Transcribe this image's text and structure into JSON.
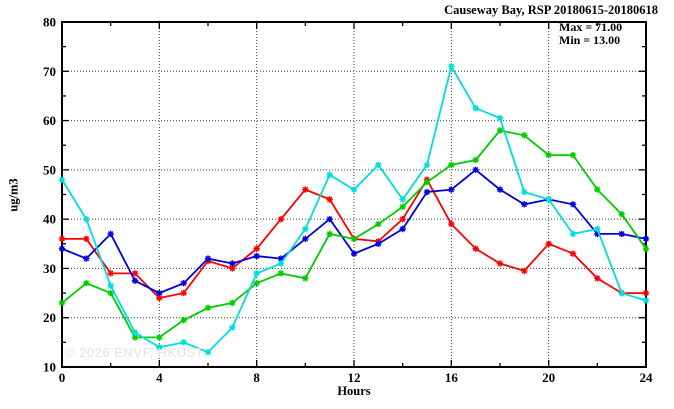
{
  "title": "Causeway Bay, RSP 20180615-20180618",
  "annotations": {
    "max_label": "Max = 71.00",
    "min_label": "Min = 13.00"
  },
  "watermark": "© 2026 ENVF, HKUST",
  "chart_data": {
    "type": "line",
    "title": "Causeway Bay, RSP 20180615-20180618",
    "xlabel": "Hours",
    "ylabel": "ug/m3",
    "xlim": [
      0,
      24
    ],
    "ylim": [
      10,
      80
    ],
    "x_major_ticks": [
      0,
      4,
      8,
      12,
      16,
      20,
      24
    ],
    "x_minor_step": 2,
    "y_major_ticks": [
      10,
      20,
      30,
      40,
      50,
      60,
      70,
      80
    ],
    "y_minor_step": 5,
    "grid": true,
    "legend": "none",
    "x": [
      0,
      1,
      2,
      3,
      4,
      5,
      6,
      7,
      8,
      9,
      10,
      11,
      12,
      13,
      14,
      15,
      16,
      17,
      18,
      19,
      20,
      21,
      22,
      23,
      24
    ],
    "series": [
      {
        "name": "series-red",
        "color": "#ff0000",
        "values": [
          36,
          36,
          29,
          29,
          24,
          25,
          31.5,
          30,
          34,
          40,
          46,
          44,
          36,
          35.5,
          40,
          48,
          39,
          34,
          31,
          29.5,
          35,
          33,
          28,
          25,
          25
        ]
      },
      {
        "name": "series-blue",
        "color": "#0000dd",
        "values": [
          34,
          32,
          37,
          27.5,
          25,
          27,
          32,
          31,
          32.5,
          32,
          36,
          40,
          33,
          35,
          38,
          45.5,
          46,
          50,
          46,
          43,
          44,
          43,
          37,
          37,
          36
        ]
      },
      {
        "name": "series-green",
        "color": "#00cc00",
        "values": [
          23,
          27,
          25,
          16,
          16,
          19.5,
          22,
          23,
          27,
          29,
          28,
          37,
          36,
          39,
          42.5,
          47.5,
          51,
          52,
          58,
          57,
          53,
          53,
          46,
          41,
          34
        ]
      },
      {
        "name": "series-cyan",
        "color": "#00dddd",
        "values": [
          48,
          40,
          26.5,
          17,
          14,
          15,
          13,
          18,
          29,
          31,
          38,
          49,
          46,
          51,
          44,
          51,
          71,
          62.5,
          60.5,
          45.5,
          44,
          37,
          38,
          25,
          23.5
        ]
      }
    ],
    "stats": {
      "max": 71.0,
      "min": 13.0
    }
  }
}
